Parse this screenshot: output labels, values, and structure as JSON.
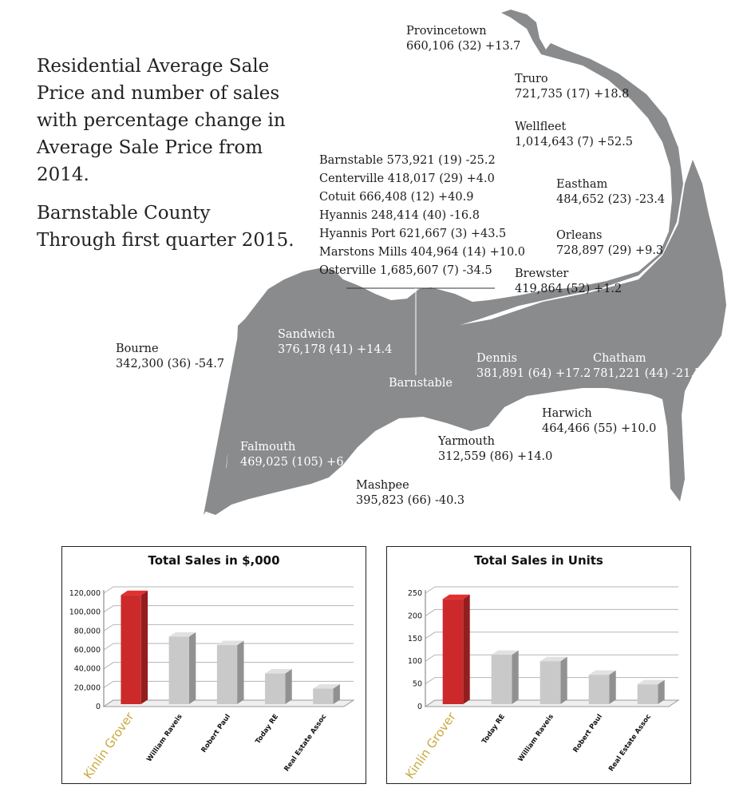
{
  "intro": {
    "heading": "Residential Average Sale Price and number of sales with percentage change in Average Sale Price from 2014.",
    "region": "Barnstable County",
    "period": "Through first quarter 2015."
  },
  "towns": {
    "provincetown": {
      "name": "Provincetown",
      "stats": "660,106 (32) +13.7"
    },
    "truro": {
      "name": "Truro",
      "stats": "721,735 (17) +18.8"
    },
    "wellfleet": {
      "name": "Wellfleet",
      "stats": "1,014,643 (7) +52.5"
    },
    "eastham": {
      "name": "Eastham",
      "stats": "484,652 (23)  -23.4"
    },
    "orleans": {
      "name": "Orleans",
      "stats": "728,897 (29)  +9.3"
    },
    "brewster": {
      "name": "Brewster",
      "stats": "419,864 (52) +1.2"
    },
    "chatham": {
      "name": "Chatham",
      "stats": "781,221 (44)  -21.5"
    },
    "harwich": {
      "name": "Harwich",
      "stats": "464,466 (55) +10.0"
    },
    "dennis": {
      "name": "Dennis",
      "stats": "381,891 (64)  +17.2"
    },
    "yarmouth": {
      "name": "Yarmouth",
      "stats": "312,559 (86) +14.0"
    },
    "mashpee": {
      "name": "Mashpee",
      "stats": "395,823 (66)  -40.3"
    },
    "falmouth": {
      "name": "Falmouth",
      "stats": "469,025 (105) +6.1"
    },
    "sandwich": {
      "name": "Sandwich",
      "stats": "376,178 (41)  +14.4"
    },
    "bourne": {
      "name": "Bourne",
      "stats": "342,300 (36)  -54.7"
    },
    "barnstable_label": "Barnstable"
  },
  "barnstable_villages": [
    "Barnstable  573,921 (19) -25.2",
    "Centerville  418,017 (29) +4.0",
    "Cotuit  666,408 (12) +40.9",
    "Hyannis  248,414 (40) -16.8",
    "Hyannis Port  621,667 (3)  +43.5",
    "Marstons Mills  404,964 (14) +10.0",
    "Osterville  1,685,607 (7) -34.5"
  ],
  "colors": {
    "map": "#8a8b8d",
    "highlight_bar": "#cc2a2a",
    "other_bar": "#c9c9c9",
    "highlight_label": "#c8a93a"
  },
  "chart_data": [
    {
      "type": "bar",
      "title": "Total Sales in $,000",
      "categories": [
        "Kinlin Grover",
        "William Raveis",
        "Robert Paul",
        "Today RE",
        "Real Estate Assoc"
      ],
      "values": [
        118000,
        74000,
        65000,
        35000,
        19000
      ],
      "ylim": [
        0,
        120000
      ],
      "yticks": [
        "0",
        "20,000",
        "40,000",
        "60,000",
        "80,000",
        "100,000",
        "120,000"
      ],
      "grid": true,
      "highlight": "Kinlin Grover"
    },
    {
      "type": "bar",
      "title": "Total Sales in Units",
      "categories": [
        "Kinlin Grover",
        "Today RE",
        "William Raveis",
        "Robert Paul",
        "Real Estate Assoc"
      ],
      "values": [
        237,
        114,
        100,
        70,
        49
      ],
      "ylim": [
        0,
        250
      ],
      "yticks": [
        "0",
        "50",
        "100",
        "150",
        "200",
        "250"
      ],
      "grid": true,
      "highlight": "Kinlin Grover"
    }
  ]
}
